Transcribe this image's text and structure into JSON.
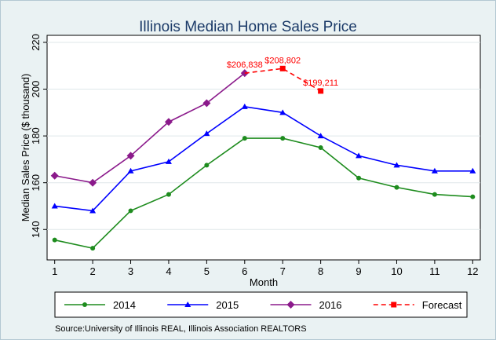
{
  "chart_data": {
    "type": "line",
    "title": "Illinois Median Home Sales Price",
    "xlabel": "Month",
    "ylabel": "Median Sales Price ($ thousand)",
    "x": [
      1,
      2,
      3,
      4,
      5,
      6,
      7,
      8,
      9,
      10,
      11,
      12
    ],
    "xlim": [
      0.8,
      12.2
    ],
    "ylim": [
      127,
      223
    ],
    "yticks": [
      140,
      160,
      180,
      200,
      220
    ],
    "grid": "horizontal",
    "legend_position": "bottom",
    "series": [
      {
        "name": "2014",
        "color": "#1e8c1e",
        "marker": "circle",
        "style": "solid",
        "x": [
          1,
          2,
          3,
          4,
          5,
          6,
          7,
          8,
          9,
          10,
          11,
          12
        ],
        "values": [
          135.5,
          132,
          148,
          155,
          167.5,
          179,
          179,
          175,
          162,
          158,
          155,
          154
        ]
      },
      {
        "name": "2015",
        "color": "#0000ff",
        "marker": "triangle",
        "style": "solid",
        "x": [
          1,
          2,
          3,
          4,
          5,
          6,
          7,
          8,
          9,
          10,
          11,
          12
        ],
        "values": [
          150,
          148,
          165,
          169,
          181,
          192.5,
          190,
          180,
          171.5,
          167.5,
          165,
          165
        ]
      },
      {
        "name": "2016",
        "color": "#8b1a8b",
        "marker": "diamond",
        "style": "solid",
        "x": [
          1,
          2,
          3,
          4,
          5,
          6
        ],
        "values": [
          163,
          160,
          171.5,
          186,
          194,
          206.838
        ]
      },
      {
        "name": "Forecast",
        "color": "#ff0000",
        "marker": "square",
        "style": "dashed",
        "x": [
          6,
          7,
          8
        ],
        "values": [
          206.838,
          208.802,
          199.211
        ]
      }
    ],
    "annotations": [
      {
        "x": 6,
        "y": 206.838,
        "text": "$206,838",
        "align": "middle"
      },
      {
        "x": 7,
        "y": 208.802,
        "text": "$208,802",
        "align": "middle"
      },
      {
        "x": 8,
        "y": 199.211,
        "text": "$199,211",
        "align": "middle"
      }
    ],
    "source": "Source:University of Illinois REAL, Illinois Association REALTORS"
  }
}
